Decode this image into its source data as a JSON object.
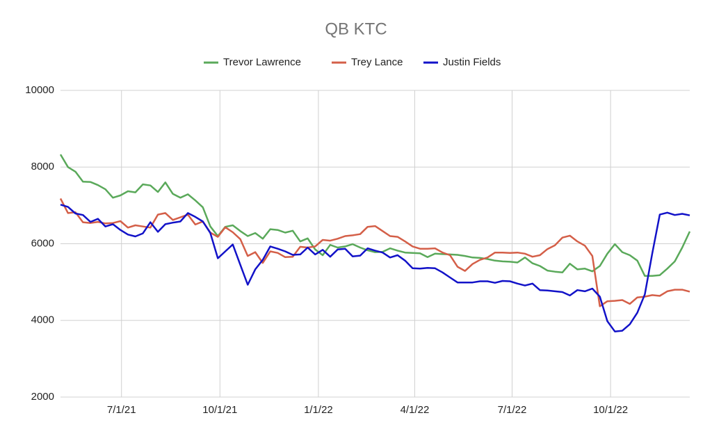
{
  "chart_data": {
    "type": "line",
    "title": "QB KTC",
    "x": [
      "2021-05-05",
      "2021-05-12",
      "2021-05-19",
      "2021-05-26",
      "2021-06-02",
      "2021-06-09",
      "2021-06-16",
      "2021-06-23",
      "2021-06-30",
      "2021-07-07",
      "2021-07-14",
      "2021-07-21",
      "2021-07-28",
      "2021-08-04",
      "2021-08-11",
      "2021-08-18",
      "2021-08-25",
      "2021-09-01",
      "2021-09-08",
      "2021-09-15",
      "2021-09-22",
      "2021-09-29",
      "2021-10-06",
      "2021-10-13",
      "2021-10-20",
      "2021-10-27",
      "2021-11-03",
      "2021-11-10",
      "2021-11-17",
      "2021-11-24",
      "2021-12-01",
      "2021-12-08",
      "2021-12-15",
      "2021-12-22",
      "2021-12-29",
      "2022-01-05",
      "2022-01-12",
      "2022-01-19",
      "2022-01-26",
      "2022-02-02",
      "2022-02-09",
      "2022-02-16",
      "2022-02-23",
      "2022-03-02",
      "2022-03-09",
      "2022-03-16",
      "2022-03-23",
      "2022-03-30",
      "2022-04-06",
      "2022-04-13",
      "2022-04-20",
      "2022-04-27",
      "2022-05-04",
      "2022-05-11",
      "2022-05-18",
      "2022-05-25",
      "2022-06-01",
      "2022-06-08",
      "2022-06-15",
      "2022-06-22",
      "2022-06-29",
      "2022-07-06",
      "2022-07-13",
      "2022-07-20",
      "2022-07-27",
      "2022-08-03",
      "2022-08-10",
      "2022-08-17",
      "2022-08-24",
      "2022-08-31",
      "2022-09-07",
      "2022-09-14",
      "2022-09-21",
      "2022-09-28",
      "2022-10-05",
      "2022-10-12",
      "2022-10-19",
      "2022-10-26",
      "2022-11-02",
      "2022-11-09",
      "2022-11-16",
      "2022-11-23",
      "2022-11-30",
      "2022-12-07",
      "2022-12-14"
    ],
    "series": [
      {
        "name": "Trevor Lawrence",
        "color": "#5aa95a",
        "values": [
          8330,
          8000,
          7880,
          7620,
          7610,
          7530,
          7420,
          7200,
          7260,
          7370,
          7340,
          7550,
          7520,
          7350,
          7600,
          7300,
          7200,
          7290,
          7130,
          6950,
          6450,
          6200,
          6440,
          6480,
          6330,
          6200,
          6280,
          6130,
          6380,
          6360,
          6290,
          6340,
          6060,
          6140,
          5850,
          5700,
          5970,
          5900,
          5930,
          5990,
          5900,
          5830,
          5780,
          5790,
          5880,
          5820,
          5770,
          5760,
          5750,
          5650,
          5740,
          5730,
          5720,
          5710,
          5680,
          5640,
          5630,
          5600,
          5560,
          5540,
          5530,
          5510,
          5640,
          5490,
          5420,
          5300,
          5270,
          5250,
          5480,
          5330,
          5350,
          5280,
          5420,
          5740,
          5990,
          5780,
          5700,
          5560,
          5160,
          5160,
          5180,
          5350,
          5540,
          5900,
          6320
        ]
      },
      {
        "name": "Trey Lance",
        "color": "#d45f48",
        "values": [
          7180,
          6800,
          6820,
          6560,
          6540,
          6570,
          6530,
          6540,
          6590,
          6420,
          6480,
          6450,
          6420,
          6760,
          6800,
          6620,
          6690,
          6760,
          6500,
          6580,
          6290,
          6180,
          6430,
          6300,
          6120,
          5680,
          5780,
          5500,
          5800,
          5760,
          5650,
          5660,
          5920,
          5900,
          5930,
          6100,
          6080,
          6130,
          6200,
          6220,
          6250,
          6440,
          6460,
          6330,
          6200,
          6180,
          6060,
          5930,
          5870,
          5870,
          5880,
          5770,
          5700,
          5400,
          5290,
          5470,
          5580,
          5640,
          5770,
          5770,
          5760,
          5770,
          5740,
          5660,
          5700,
          5860,
          5960,
          6160,
          6210,
          6060,
          5950,
          5680,
          4370,
          4500,
          4510,
          4530,
          4430,
          4600,
          4620,
          4660,
          4640,
          4760,
          4800,
          4800,
          4750
        ]
      },
      {
        "name": "Justin Fields",
        "color": "#1212c8",
        "values": [
          7020,
          6960,
          6790,
          6750,
          6570,
          6650,
          6450,
          6510,
          6360,
          6240,
          6190,
          6270,
          6560,
          6310,
          6510,
          6550,
          6580,
          6800,
          6700,
          6580,
          6280,
          5620,
          5800,
          5980,
          5450,
          4930,
          5330,
          5580,
          5930,
          5870,
          5800,
          5710,
          5720,
          5900,
          5720,
          5840,
          5660,
          5850,
          5870,
          5670,
          5690,
          5880,
          5820,
          5770,
          5640,
          5700,
          5560,
          5360,
          5350,
          5370,
          5360,
          5250,
          5120,
          4990,
          4990,
          4990,
          5020,
          5020,
          4980,
          5030,
          5020,
          4960,
          4910,
          4960,
          4790,
          4780,
          4760,
          4740,
          4650,
          4790,
          4760,
          4830,
          4620,
          3980,
          3710,
          3730,
          3900,
          4200,
          4680,
          5750,
          6760,
          6810,
          6750,
          6780,
          6740
        ]
      }
    ],
    "xlim": [
      "2021-05-05",
      "2022-12-14"
    ],
    "xticks": [
      {
        "value": "2021-07-01",
        "label": "7/1/21"
      },
      {
        "value": "2021-10-01",
        "label": "10/1/21"
      },
      {
        "value": "2022-01-01",
        "label": "1/1/22"
      },
      {
        "value": "2022-04-01",
        "label": "4/1/22"
      },
      {
        "value": "2022-07-01",
        "label": "7/1/22"
      },
      {
        "value": "2022-10-01",
        "label": "10/1/22"
      }
    ],
    "ylim": [
      2000,
      10000
    ],
    "yticks": [
      2000,
      4000,
      6000,
      8000,
      10000
    ],
    "grid": true,
    "legend": "top"
  }
}
